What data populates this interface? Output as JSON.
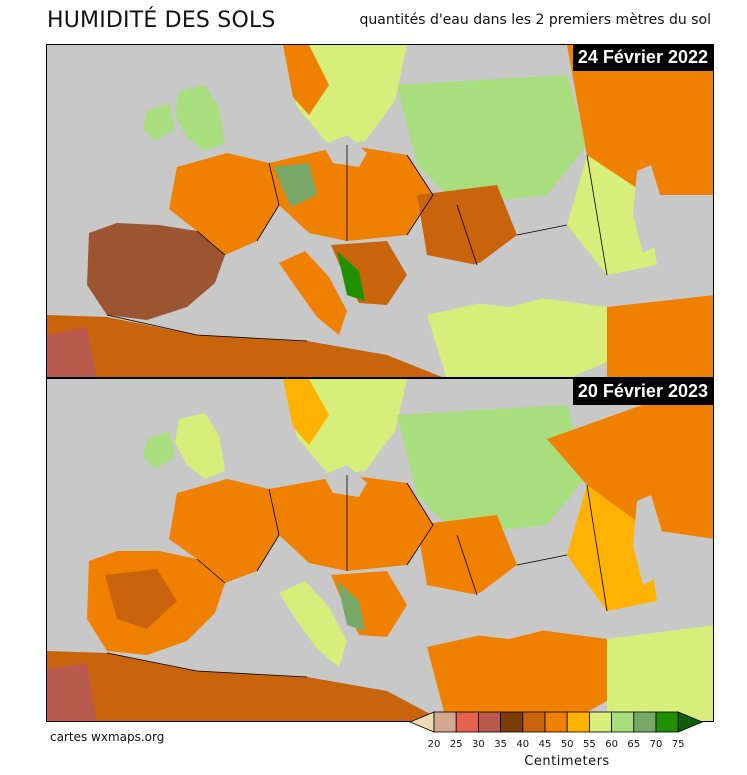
{
  "header": {
    "title": "HUMIDITÉ DES SOLS",
    "subtitle": "quantités d'eau dans les 2 premiers mètres du sol"
  },
  "maps": [
    {
      "date_label": "24 Février 2022"
    },
    {
      "date_label": "20 Février 2023"
    }
  ],
  "footer": {
    "credit": "cartes wxmaps.org"
  },
  "legend": {
    "units": "Centimeters",
    "ticks": [
      "20",
      "25",
      "30",
      "35",
      "40",
      "45",
      "50",
      "55",
      "60",
      "65",
      "70",
      "75"
    ],
    "colors": [
      "#efd9b4",
      "#d4a88f",
      "#e6624c",
      "#b95a4e",
      "#7a3d05",
      "#c9640c",
      "#f08000",
      "#ffb300",
      "#d7ef7a",
      "#a9de7e",
      "#78a868",
      "#219000",
      "#0f5e0a"
    ]
  }
}
